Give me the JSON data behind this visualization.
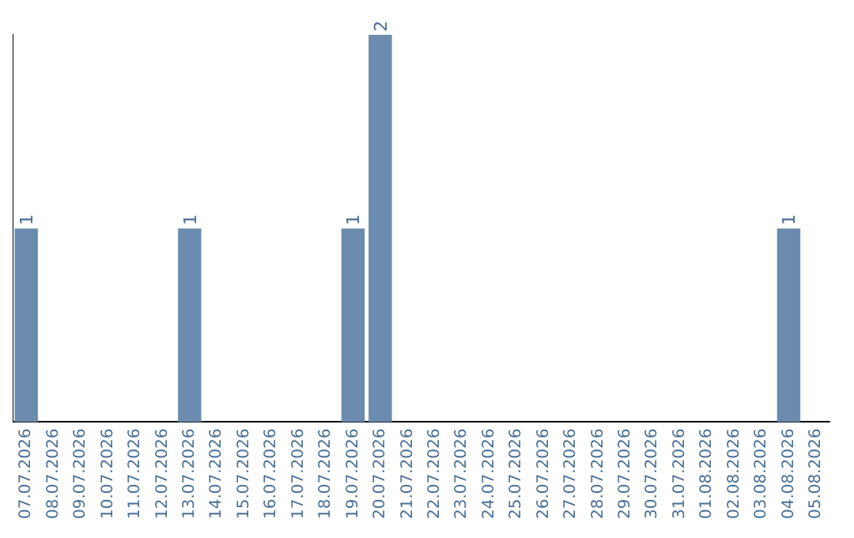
{
  "chart_data": {
    "type": "bar",
    "categories": [
      "07.07.2026",
      "08.07.2026",
      "09.07.2026",
      "10.07.2026",
      "11.07.2026",
      "12.07.2026",
      "13.07.2026",
      "14.07.2026",
      "15.07.2026",
      "16.07.2026",
      "17.07.2026",
      "18.07.2026",
      "19.07.2026",
      "20.07.2026",
      "21.07.2026",
      "22.07.2026",
      "23.07.2026",
      "24.07.2026",
      "25.07.2026",
      "26.07.2026",
      "27.07.2026",
      "28.07.2026",
      "29.07.2026",
      "30.07.2026",
      "31.07.2026",
      "01.08.2026",
      "02.08.2026",
      "03.08.2026",
      "04.08.2026",
      "05.08.2026"
    ],
    "values": [
      1,
      0,
      0,
      0,
      0,
      0,
      1,
      0,
      0,
      0,
      0,
      0,
      1,
      2,
      0,
      0,
      0,
      0,
      0,
      0,
      0,
      0,
      0,
      0,
      0,
      0,
      0,
      0,
      1,
      0
    ],
    "value_labels": [
      "1",
      null,
      null,
      null,
      null,
      null,
      "1",
      null,
      null,
      null,
      null,
      null,
      "1",
      "2",
      null,
      null,
      null,
      null,
      null,
      null,
      null,
      null,
      null,
      null,
      null,
      null,
      null,
      null,
      "1",
      null
    ],
    "color": "#6b8cae",
    "grid": false,
    "legend": false,
    "tick_labels": "x"
  }
}
